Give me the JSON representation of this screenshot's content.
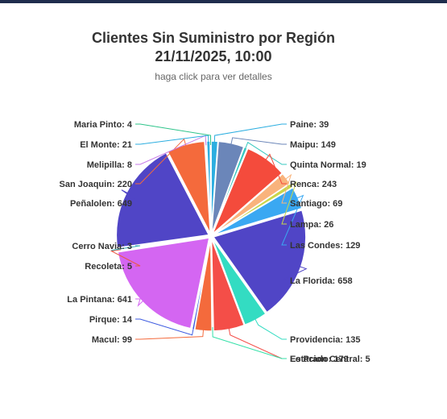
{
  "header": {
    "title_line1": "Clientes Sin Suministro por Región",
    "title_line2": "21/11/2025, 10:00",
    "subtitle": "haga click para ver detalles"
  },
  "chart_data": {
    "type": "pie",
    "title": "Clientes Sin Suministro por Región 21/11/2025, 10:00",
    "subtitle": "haga click para ver detalles",
    "slices": [
      {
        "name": "Paine",
        "value": 39,
        "color": "#2caee0"
      },
      {
        "name": "Maipu",
        "value": 149,
        "color": "#6b86b9"
      },
      {
        "name": "Quinta Normal",
        "value": 19,
        "color": "#37c8c0"
      },
      {
        "name": "Renca",
        "value": 243,
        "color": "#f44b3c"
      },
      {
        "name": "Santiago",
        "value": 69,
        "color": "#f9b37c"
      },
      {
        "name": "Lampa",
        "value": 26,
        "color": "#c9d64a"
      },
      {
        "name": "Las Condes",
        "value": 129,
        "color": "#3aa8f2"
      },
      {
        "name": "La Florida",
        "value": 658,
        "color": "#5045c6"
      },
      {
        "name": "Providencia",
        "value": 135,
        "color": "#33dcc2"
      },
      {
        "name": "Lo Prado",
        "value": 179,
        "color": "#f44e48"
      },
      {
        "name": "Estacion Central",
        "value": 5,
        "color": "#33e0a8"
      },
      {
        "name": "Macul",
        "value": 99,
        "color": "#f46a3c"
      },
      {
        "name": "Pirque",
        "value": 14,
        "color": "#3d5ae0"
      },
      {
        "name": "La Pintana",
        "value": 641,
        "color": "#d466f2"
      },
      {
        "name": "Recoleta",
        "value": 5,
        "color": "#e85a48"
      },
      {
        "name": "Cerro Navia",
        "value": 3,
        "color": "#3cb0b8"
      },
      {
        "name": "Peñalolen",
        "value": 649,
        "color": "#5045c6"
      },
      {
        "name": "San Joaquin",
        "value": 220,
        "color": "#f46a3c"
      },
      {
        "name": "Melipilla",
        "value": 8,
        "color": "#c77ae8"
      },
      {
        "name": "El Monte",
        "value": 21,
        "color": "#2caee0"
      },
      {
        "name": "Maria Pinto",
        "value": 4,
        "color": "#2ec48a"
      }
    ]
  }
}
